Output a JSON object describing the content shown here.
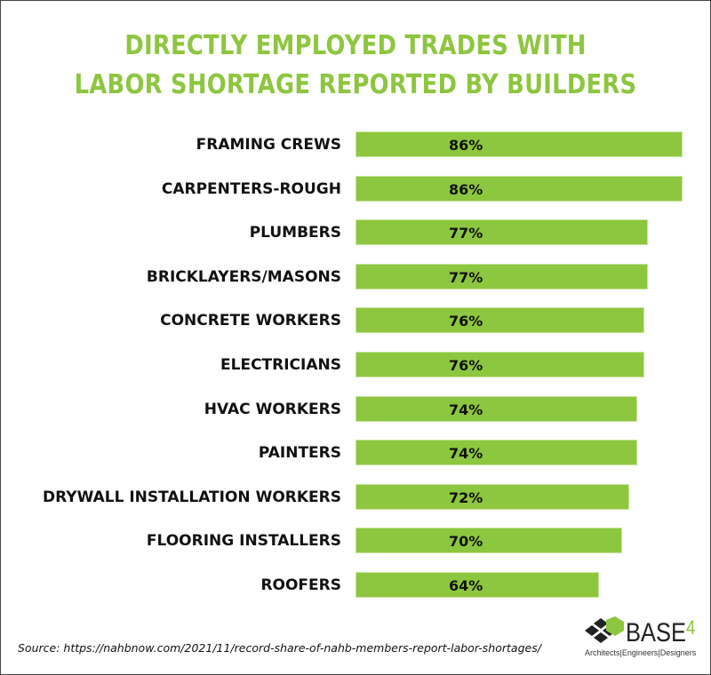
{
  "title": {
    "line1": "DIRECTLY EMPLOYED TRADES WITH",
    "line2": "LABOR SHORTAGE REPORTED BY BUILDERS"
  },
  "rows": [
    {
      "label": "FRAMING CREWS",
      "value": "86%"
    },
    {
      "label": "CARPENTERS-ROUGH",
      "value": "86%"
    },
    {
      "label": "PLUMBERS",
      "value": "77%"
    },
    {
      "label": "BRICKLAYERS/MASONS",
      "value": "77%"
    },
    {
      "label": "CONCRETE WORKERS",
      "value": "76%"
    },
    {
      "label": "ELECTRICIANS",
      "value": "76%"
    },
    {
      "label": "HVAC WORKERS",
      "value": "74%"
    },
    {
      "label": "PAINTERS",
      "value": "74%"
    },
    {
      "label": "DRYWALL INSTALLATION WORKERS",
      "value": "72%"
    },
    {
      "label": "FLOORING INSTALLERS",
      "value": "70%"
    },
    {
      "label": "ROOFERS",
      "value": "64%"
    }
  ],
  "source": "Source: https://nahbnow.com/2021/11/record-share-of-nahb-members-report-labor-shortages/",
  "logo": {
    "name": "BASE",
    "sup": "4",
    "tagline": "Architects|Engineers|Designers"
  },
  "colors": {
    "accent": "#8dc63f",
    "text": "#111111"
  },
  "chart_data": {
    "type": "bar",
    "orientation": "horizontal",
    "title": "DIRECTLY EMPLOYED TRADES WITH LABOR SHORTAGE REPORTED BY BUILDERS",
    "categories": [
      "FRAMING CREWS",
      "CARPENTERS-ROUGH",
      "PLUMBERS",
      "BRICKLAYERS/MASONS",
      "CONCRETE WORKERS",
      "ELECTRICIANS",
      "HVAC WORKERS",
      "PAINTERS",
      "DRYWALL INSTALLATION WORKERS",
      "FLOORING INSTALLERS",
      "ROOFERS"
    ],
    "values": [
      86,
      86,
      77,
      77,
      76,
      76,
      74,
      74,
      72,
      70,
      64
    ],
    "value_format": "percent",
    "data_labels": true,
    "xlabel": "",
    "ylabel": "",
    "grid": false,
    "legend": "none",
    "bar_color": "#8dc63f",
    "annotations": [
      "Source: https://nahbnow.com/2021/11/record-share-of-nahb-members-report-labor-shortages/"
    ]
  }
}
